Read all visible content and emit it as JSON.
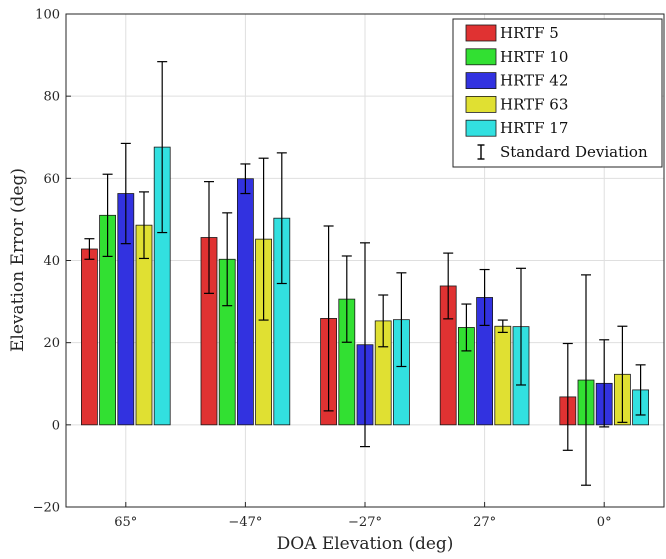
{
  "chart_data": {
    "type": "bar",
    "xlabel": "DOA Elevation (deg)",
    "ylabel": "Elevation Error (deg)",
    "ylim": [
      -20,
      100
    ],
    "yticks": [
      -20,
      0,
      20,
      40,
      60,
      80,
      100
    ],
    "grid": true,
    "legend_position": "top-right",
    "categories": [
      "65°",
      "−47°",
      "−27°",
      "27°",
      "0°"
    ],
    "series": [
      {
        "name": "HRTF 5",
        "color": "#e03232",
        "values": [
          42.8,
          45.6,
          25.9,
          33.8,
          6.8
        ],
        "std": [
          2.5,
          13.6,
          22.5,
          8.0,
          13.0
        ]
      },
      {
        "name": "HRTF 10",
        "color": "#32e032",
        "values": [
          51.0,
          40.3,
          30.6,
          23.7,
          10.9
        ],
        "std": [
          10.0,
          11.3,
          10.5,
          5.7,
          25.6
        ]
      },
      {
        "name": "HRTF 42",
        "color": "#3232e0",
        "values": [
          56.3,
          59.9,
          19.5,
          31.0,
          10.1
        ],
        "std": [
          12.2,
          3.6,
          24.8,
          6.8,
          10.6
        ]
      },
      {
        "name": "HRTF 63",
        "color": "#e0e032",
        "values": [
          48.6,
          45.2,
          25.3,
          24.0,
          12.3
        ],
        "std": [
          8.1,
          19.7,
          6.3,
          1.5,
          11.7
        ]
      },
      {
        "name": "HRTF 17",
        "color": "#32e0e0",
        "values": [
          67.6,
          50.3,
          25.6,
          23.9,
          8.5
        ],
        "std": [
          20.8,
          15.9,
          11.4,
          14.2,
          6.1
        ]
      }
    ],
    "errorbar_legend": "Standard Deviation"
  }
}
